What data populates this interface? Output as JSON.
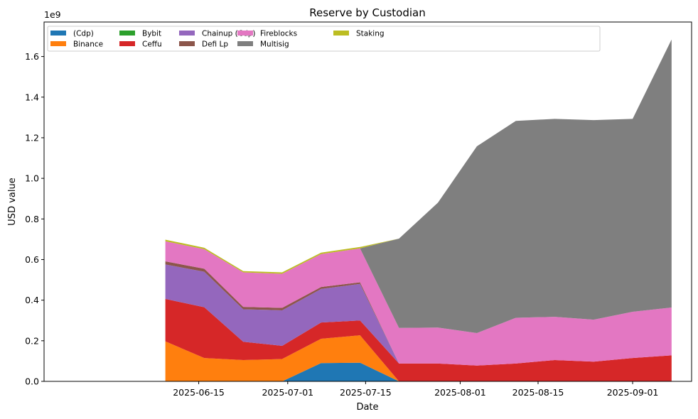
{
  "chart_data": {
    "type": "area",
    "stacked": true,
    "title": "Reserve by Custodian",
    "xlabel": "Date",
    "ylabel": "USD value",
    "y_offset_label": "1e9",
    "ylim": [
      0,
      1.77
    ],
    "y_ticks": [
      0.0,
      0.2,
      0.4,
      0.6,
      0.8,
      1.0,
      1.2,
      1.4,
      1.6
    ],
    "y_tick_labels": [
      "0.0",
      "0.2",
      "0.4",
      "0.6",
      "0.8",
      "1.0",
      "1.2",
      "1.4",
      "1.6"
    ],
    "x_day_range": [
      -13.8,
      102.6
    ],
    "x_ticks": [
      14,
      30,
      44,
      61,
      75,
      92
    ],
    "x_tick_labels": [
      "2025-06-15",
      "2025-07-01",
      "2025-07-15",
      "2025-08-01",
      "2025-08-15",
      "2025-09-01"
    ],
    "x_days": [
      8,
      15,
      22,
      29,
      36,
      43,
      50,
      57,
      64,
      71,
      78,
      85,
      92,
      99
    ],
    "x_dates": [
      "2025-06-09",
      "2025-06-16",
      "2025-06-23",
      "2025-06-30",
      "2025-07-07",
      "2025-07-14",
      "2025-07-21",
      "2025-07-28",
      "2025-08-04",
      "2025-08-11",
      "2025-08-18",
      "2025-08-25",
      "2025-09-01",
      "2025-09-08"
    ],
    "legend": {
      "position": "top-left",
      "columns": 8
    },
    "series": [
      {
        "name": "(Cdp)",
        "color": "#1f77b4",
        "values": [
          0,
          0,
          0,
          0,
          0.09,
          0.092,
          0,
          0,
          0,
          0,
          0,
          0,
          0,
          0
        ]
      },
      {
        "name": "Binance",
        "color": "#ff7f0e",
        "values": [
          0.197,
          0.115,
          0.105,
          0.11,
          0.12,
          0.135,
          0,
          0,
          0,
          0,
          0,
          0,
          0,
          0
        ]
      },
      {
        "name": "Bybit",
        "color": "#2ca02c",
        "values": [
          0,
          0,
          0,
          0,
          0,
          0,
          0,
          0,
          0,
          0,
          0,
          0,
          0,
          0
        ]
      },
      {
        "name": "Ceffu",
        "color": "#d62728",
        "values": [
          0.209,
          0.25,
          0.09,
          0.065,
          0.08,
          0.073,
          0.088,
          0.088,
          0.078,
          0.088,
          0.105,
          0.097,
          0.115,
          0.128
        ]
      },
      {
        "name": "Chainup (Cdp)",
        "color": "#9467bd",
        "values": [
          0.17,
          0.175,
          0.16,
          0.175,
          0.165,
          0.18,
          0,
          0,
          0,
          0,
          0,
          0,
          0,
          0
        ]
      },
      {
        "name": "Defi Lp",
        "color": "#8c564b",
        "values": [
          0.015,
          0.015,
          0.012,
          0.012,
          0.01,
          0.008,
          0,
          0,
          0,
          0,
          0,
          0,
          0,
          0
        ]
      },
      {
        "name": "Fireblocks",
        "color": "#e377c2",
        "values": [
          0.099,
          0.096,
          0.17,
          0.168,
          0.162,
          0.167,
          0.175,
          0.177,
          0.16,
          0.225,
          0.213,
          0.207,
          0.228,
          0.236
        ]
      },
      {
        "name": "Multisig",
        "color": "#7f7f7f",
        "values": [
          0,
          0,
          0,
          0,
          0,
          0,
          0.44,
          0.615,
          0.92,
          0.97,
          0.975,
          0.983,
          0.95,
          1.32
        ]
      },
      {
        "name": "Staking",
        "color": "#bcbd22",
        "values": [
          0.008,
          0.007,
          0.006,
          0.007,
          0.007,
          0.007,
          0,
          0,
          0,
          0,
          0,
          0,
          0,
          0
        ]
      }
    ]
  }
}
